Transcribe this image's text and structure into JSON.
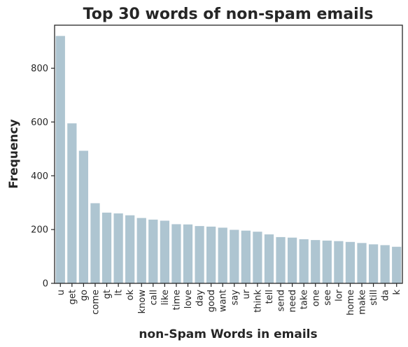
{
  "chart_data": {
    "type": "bar",
    "title": "Top 30 words of non-spam emails",
    "xlabel": "non-Spam Words in emails",
    "ylabel": "Frequency",
    "categories": [
      "u",
      "get",
      "go",
      "come",
      "gt",
      "lt",
      "ok",
      "know",
      "call",
      "like",
      "time",
      "love",
      "day",
      "good",
      "want",
      "say",
      "ur",
      "think",
      "tell",
      "send",
      "need",
      "take",
      "one",
      "see",
      "lor",
      "home",
      "make",
      "still",
      "da",
      "k"
    ],
    "values": [
      920,
      595,
      493,
      298,
      263,
      260,
      253,
      243,
      237,
      233,
      220,
      219,
      213,
      211,
      207,
      199,
      196,
      192,
      182,
      172,
      170,
      164,
      161,
      159,
      157,
      154,
      150,
      145,
      142,
      136
    ],
    "ylim": [
      0,
      960
    ],
    "yticks": [
      0,
      200,
      400,
      600,
      800
    ],
    "bar_color": "#aec5d1",
    "grid": false
  }
}
